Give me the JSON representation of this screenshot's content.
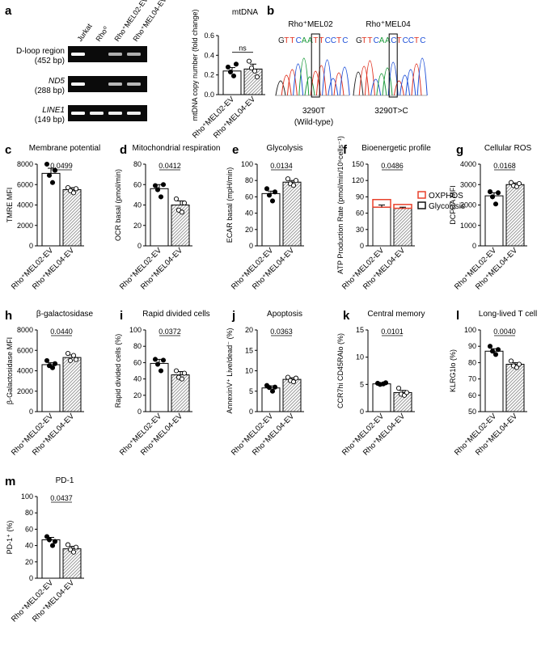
{
  "figure": {
    "groups": [
      "Rho⁺MEL02-EV",
      "Rho⁺MEL04-EV"
    ],
    "colors": {
      "bar_fill": "#ffffff",
      "hatch": "#9a9a9a",
      "oxphos": "#e8412c",
      "glycolysis": "#111111"
    }
  },
  "panel_a": {
    "letter": "a",
    "gel": {
      "lanes": [
        "Jurkat",
        "Rho⁰",
        "Rho⁺MEL02-EV",
        "Rho⁺MEL04-EV"
      ],
      "rows": [
        {
          "name": "D-loop region",
          "size": "(452 bp)",
          "band_intensity": [
            1,
            0,
            0.55,
            0.55
          ]
        },
        {
          "name": "ND5",
          "size": "(288 bp)",
          "band_intensity": [
            1,
            0,
            0.6,
            0.6
          ]
        },
        {
          "name": "LINE1",
          "size": "(149 bp)",
          "band_intensity": [
            1,
            0.9,
            0.9,
            0.9
          ]
        }
      ]
    }
  },
  "panel_b": {
    "letter": "b",
    "traces": [
      {
        "title": "Rho⁺MEL02",
        "sequence": "GTTCAATTCCTC",
        "caption": "3290T",
        "caption2": "(Wild-type)"
      },
      {
        "title": "Rho⁺MEL04",
        "sequence": "GTTCAACTCCTC",
        "caption": "3290T>C",
        "caption2": ""
      }
    ],
    "base_colors": {
      "G": "#222222",
      "T": "#e0301e",
      "C": "#1d4fd8",
      "A": "#1a9a3a"
    }
  },
  "chart_data": [
    {
      "id": "mtdna",
      "type": "bar",
      "letter": "",
      "title": "mtDNA",
      "ylabel": "mtDNA copy number (fold change)",
      "ylim": [
        0,
        0.6
      ],
      "ticks": [
        "0.0",
        "0.2",
        "0.4",
        "0.6"
      ],
      "tick_values": [
        0,
        0.2,
        0.4,
        0.6
      ],
      "values": [
        0.24,
        0.26
      ],
      "err": [
        0.035,
        0.05
      ],
      "points": [
        [
          0.28,
          0.23,
          0.19,
          0.31
        ],
        [
          0.34,
          0.27,
          0.24,
          0.18
        ]
      ],
      "sig": "ns"
    },
    {
      "id": "c",
      "type": "bar",
      "letter": "c",
      "title": "Membrane potential",
      "ylabel": "TMRE MFI",
      "ylim": [
        0,
        8000
      ],
      "ticks": [
        "0",
        "2000",
        "4000",
        "6000",
        "8000"
      ],
      "tick_values": [
        0,
        2000,
        4000,
        6000,
        8000
      ],
      "values": [
        7100,
        5500
      ],
      "err": [
        500,
        200
      ],
      "points": [
        [
          8000,
          6900,
          6200,
          7400
        ],
        [
          5700,
          5400,
          5200,
          5600
        ]
      ],
      "sig": "0.0499"
    },
    {
      "id": "d",
      "type": "bar",
      "letter": "d",
      "title": "Mitochondrial respiration",
      "ylabel": "OCR basal (pmol/min)",
      "ylim": [
        0,
        80
      ],
      "ticks": [
        "0",
        "20",
        "40",
        "60",
        "80"
      ],
      "tick_values": [
        0,
        20,
        40,
        60,
        80
      ],
      "values": [
        56,
        40
      ],
      "err": [
        4,
        4
      ],
      "points": [
        [
          59,
          55,
          48,
          60
        ],
        [
          46,
          35,
          33,
          42
        ]
      ],
      "sig": "0.0412"
    },
    {
      "id": "e",
      "type": "bar",
      "letter": "e",
      "title": "Glycolysis",
      "ylabel": "ECAR basal (mpH/min)",
      "ylim": [
        0,
        100
      ],
      "ticks": [
        "0",
        "20",
        "40",
        "60",
        "80",
        "100"
      ],
      "tick_values": [
        0,
        20,
        40,
        60,
        80,
        100
      ],
      "values": [
        64,
        78
      ],
      "err": [
        3,
        2
      ],
      "points": [
        [
          70,
          62,
          55,
          66
        ],
        [
          82,
          76,
          74,
          80
        ]
      ],
      "sig": "0.0134"
    },
    {
      "id": "f",
      "type": "stacked_bar",
      "letter": "f",
      "title": "Bioenergetic profile",
      "ylabel": "ATP Production Rate (pmol/min/10⁶cells⁻¹)",
      "ylim": [
        0,
        150
      ],
      "ticks": [
        "0",
        "30",
        "60",
        "90",
        "120",
        "150"
      ],
      "tick_values": [
        0,
        30,
        60,
        90,
        120,
        150
      ],
      "series": [
        {
          "name": "Glycolysis",
          "values": [
            71,
            69
          ]
        },
        {
          "name": "OXPHOS",
          "values": [
            14,
            7
          ]
        }
      ],
      "err": [
        4,
        2
      ],
      "sig": "0.0486",
      "legend": [
        "OXPHOS",
        "Glycolysis"
      ]
    },
    {
      "id": "g",
      "type": "bar",
      "letter": "g",
      "title": "Cellular ROS",
      "ylabel": "DCFDA MFI",
      "ylim": [
        0,
        4000
      ],
      "ticks": [
        "0",
        "1000",
        "2000",
        "3000",
        "4000"
      ],
      "tick_values": [
        0,
        1000,
        2000,
        3000,
        4000
      ],
      "values": [
        2450,
        3000
      ],
      "err": [
        150,
        80
      ],
      "points": [
        [
          2650,
          2400,
          2050,
          2600
        ],
        [
          3100,
          2950,
          2900,
          3050
        ]
      ],
      "sig": "0.0168"
    },
    {
      "id": "h",
      "type": "bar",
      "letter": "h",
      "title": "β-galactosidase",
      "ylabel": "β-Galactosidase MFI",
      "ylim": [
        0,
        8000
      ],
      "ticks": [
        "0",
        "2000",
        "4000",
        "6000",
        "8000"
      ],
      "tick_values": [
        0,
        2000,
        4000,
        6000,
        8000
      ],
      "values": [
        4600,
        5300
      ],
      "err": [
        200,
        250
      ],
      "points": [
        [
          5000,
          4500,
          4300,
          4700
        ],
        [
          5700,
          5000,
          5500,
          5100
        ]
      ],
      "sig": "0.0440"
    },
    {
      "id": "i",
      "type": "bar",
      "letter": "i",
      "title": "Rapid divided cells",
      "ylabel": "Rapid divided cells (%)",
      "ylim": [
        0,
        100
      ],
      "ticks": [
        "0",
        "20",
        "40",
        "60",
        "80",
        "100"
      ],
      "tick_values": [
        0,
        20,
        40,
        60,
        80,
        100
      ],
      "values": [
        59,
        45
      ],
      "err": [
        5,
        4
      ],
      "points": [
        [
          64,
          58,
          50,
          63
        ],
        [
          50,
          42,
          40,
          47
        ]
      ],
      "sig": "0.0372"
    },
    {
      "id": "j",
      "type": "bar",
      "letter": "j",
      "title": "Apoptosis",
      "ylabel": "AnnexinV⁺ Live/dead⁻ (%)",
      "ylim": [
        0,
        20
      ],
      "ticks": [
        "0",
        "5",
        "10",
        "15",
        "20"
      ],
      "tick_values": [
        0,
        5,
        10,
        15,
        20
      ],
      "values": [
        5.8,
        7.9
      ],
      "err": [
        0.5,
        0.4
      ],
      "points": [
        [
          6.4,
          5.9,
          5.0,
          6.0
        ],
        [
          8.4,
          7.6,
          7.3,
          8.2
        ]
      ],
      "sig": "0.0363"
    },
    {
      "id": "k",
      "type": "bar",
      "letter": "k",
      "title": "Central memory",
      "ylabel": "CCR7hi CD45RAlo (%)",
      "ylim": [
        0,
        15
      ],
      "ticks": [
        "0",
        "5",
        "10",
        "15"
      ],
      "tick_values": [
        0,
        5,
        10,
        15
      ],
      "values": [
        5.1,
        3.5
      ],
      "err": [
        0.15,
        0.4
      ],
      "points": [
        [
          5.2,
          5.0,
          5.1,
          5.3
        ],
        [
          4.3,
          3.2,
          3.0,
          3.5
        ]
      ],
      "sig": "0.0101"
    },
    {
      "id": "l",
      "type": "bar",
      "letter": "l",
      "title": "Long-lived T cell",
      "ylabel": "KLRG1lo (%)",
      "ylim": [
        50,
        100
      ],
      "ticks": [
        "50",
        "60",
        "70",
        "80",
        "90",
        "100"
      ],
      "tick_values": [
        50,
        60,
        70,
        80,
        90,
        100
      ],
      "values": [
        87,
        79
      ],
      "err": [
        1.5,
        1
      ],
      "points": [
        [
          90,
          87,
          85,
          88
        ],
        [
          81,
          78,
          77,
          79
        ]
      ],
      "sig": "0.0040"
    },
    {
      "id": "m",
      "type": "bar",
      "letter": "m",
      "title": "PD-1",
      "ylabel": "PD-1⁺ (%)",
      "ylim": [
        0,
        100
      ],
      "ticks": [
        "0",
        "20",
        "40",
        "60",
        "80",
        "100"
      ],
      "tick_values": [
        0,
        20,
        40,
        60,
        80,
        100
      ],
      "values": [
        47,
        36
      ],
      "err": [
        3,
        3
      ],
      "points": [
        [
          51,
          47,
          40,
          45
        ],
        [
          41,
          35,
          32,
          38
        ]
      ],
      "sig": "0.0437"
    }
  ]
}
